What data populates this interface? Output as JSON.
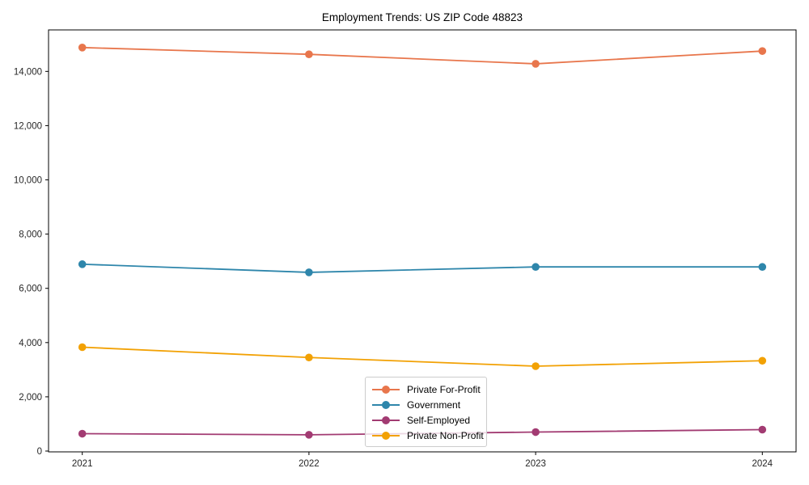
{
  "chart_data": {
    "type": "line",
    "title": "Employment Trends: US ZIP Code 48823",
    "xlabel": "",
    "ylabel": "",
    "categories": [
      "2021",
      "2022",
      "2023",
      "2024"
    ],
    "series": [
      {
        "name": "Private For-Profit",
        "color": "#E8764C",
        "values": [
          14880,
          14630,
          14280,
          14750
        ]
      },
      {
        "name": "Government",
        "color": "#2E86AB",
        "values": [
          6890,
          6590,
          6790,
          6790
        ]
      },
      {
        "name": "Self-Employed",
        "color": "#A23B72",
        "values": [
          640,
          600,
          700,
          790
        ]
      },
      {
        "name": "Private Non-Profit",
        "color": "#F2A104",
        "values": [
          3830,
          3450,
          3130,
          3330
        ]
      }
    ],
    "yticks": [
      0,
      2000,
      4000,
      6000,
      8000,
      10000,
      12000,
      14000
    ],
    "ylim": [
      0,
      15530
    ],
    "grid": false,
    "legend_position": "lower-center",
    "marker": "circle",
    "axis_color": "#000000"
  }
}
